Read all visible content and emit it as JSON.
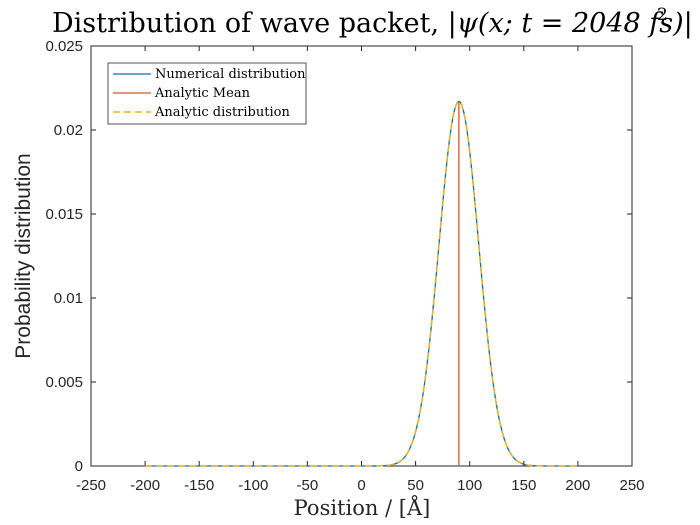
{
  "chart_data": {
    "type": "line",
    "title_prefix": "Distribution of wave packet, ",
    "title_math": "|ψ(x; t = 2048 fs)|",
    "title_exponent": "2",
    "xlabel": "Position / [Å]",
    "ylabel": "Probability distribution",
    "xlim": [
      -250,
      250
    ],
    "ylim": [
      0,
      0.025
    ],
    "xticks": [
      -250,
      -200,
      -150,
      -100,
      -50,
      0,
      50,
      100,
      150,
      200,
      250
    ],
    "xtick_labels": [
      "-250",
      "-200",
      "-150",
      "-100",
      "-50",
      "0",
      "50",
      "100",
      "150",
      "200",
      "250"
    ],
    "yticks": [
      0,
      0.005,
      0.01,
      0.015,
      0.02,
      0.025
    ],
    "ytick_labels": [
      "0",
      "0.005",
      "0.01",
      "0.015",
      "0.02",
      "0.025"
    ],
    "legend_position": "top-left",
    "x_range": [
      -200,
      200
    ],
    "gaussian": {
      "mean": 90,
      "peak": 0.0217,
      "sigma": 18.4
    },
    "series": [
      {
        "name": "Numerical distribution",
        "color": "#0072BD",
        "style": "solid"
      },
      {
        "name": "Analytic Mean",
        "color": "#D95319",
        "style": "solid",
        "x": 90,
        "y_range": [
          0,
          0.0217
        ]
      },
      {
        "name": "Analytic distribution",
        "color": "#EDB120",
        "style": "dashed"
      }
    ]
  }
}
